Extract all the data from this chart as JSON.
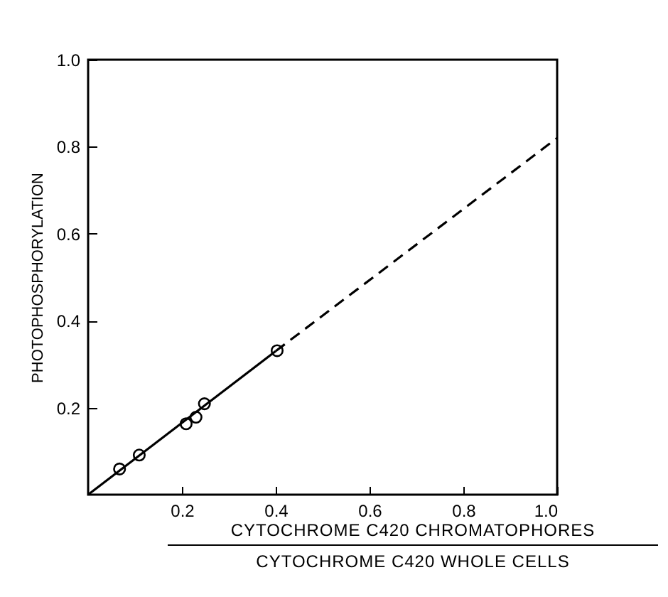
{
  "chart_data": {
    "type": "scatter",
    "xlabel": "CYTOCHROME C420 CHROMATOPHORES",
    "ylabel": "PHOTOPHOSPHORYLATION",
    "annotations": [
      "CYTOCHROME C420 WHOLE CELLS"
    ],
    "xlim": [
      0,
      1
    ],
    "ylim": [
      0,
      1
    ],
    "xticks": [
      0.2,
      0.4,
      0.6,
      0.8,
      {
        "value": 1,
        "label": "1.0"
      }
    ],
    "yticks": [
      0.2,
      0.4,
      0.6,
      0.8,
      {
        "value": 1,
        "label": "1.0"
      }
    ],
    "series": [
      {
        "marker": "circle",
        "color": "#000000",
        "x": [
          0.067,
          0.109,
          0.209,
          0.23,
          0.248,
          0.403
        ],
        "values": [
          0.059,
          0.091,
          0.163,
          0.178,
          0.209,
          0.331
        ]
      },
      {
        "type": "line",
        "color": "#000000",
        "line_style": "solid",
        "x": [
          0,
          0.4
        ],
        "values": [
          0,
          0.33
        ]
      },
      {
        "type": "line",
        "color": "#000000",
        "line_style": "dashed",
        "x": [
          0.4,
          1
        ],
        "values": [
          0.33,
          0.82
        ]
      }
    ]
  }
}
